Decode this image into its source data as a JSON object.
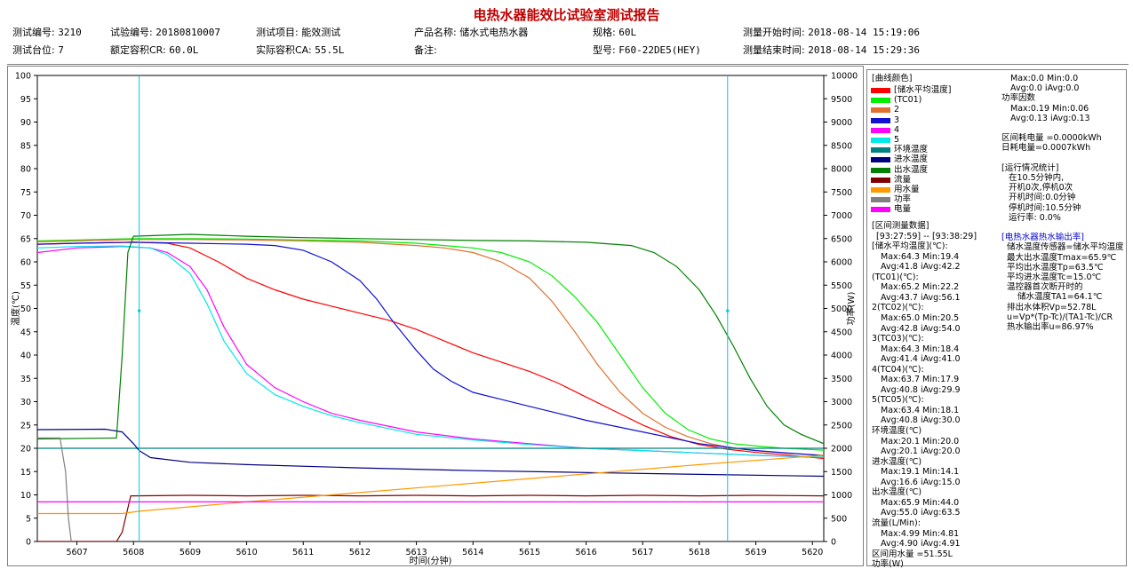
{
  "report": {
    "title": "电热水器能效比试验室测试报告",
    "row1": [
      {
        "label": "测试编号:",
        "value": "3210"
      },
      {
        "label": "试验编号:",
        "value": "20180810007"
      },
      {
        "label": "测试项目:",
        "value": "能效测试"
      },
      {
        "label": "产品名称:",
        "value": "储水式电热水器"
      },
      {
        "label": "规格:",
        "value": "60L"
      },
      {
        "label": "测量开始时间:",
        "value": "2018-08-14 15:19:06"
      }
    ],
    "row2": [
      {
        "label": "测试台位:",
        "value": "7"
      },
      {
        "label": "额定容积CR:",
        "value": "60.0L"
      },
      {
        "label": "实际容积CA:",
        "value": "55.5L"
      },
      {
        "label": "备注:",
        "value": ""
      },
      {
        "label": "型号:",
        "value": "F60-22DE5(HEY)"
      },
      {
        "label": "测量结束时间:",
        "value": "2018-08-14 15:29:36"
      }
    ]
  },
  "legend": {
    "header": "[曲线颜色]",
    "items": [
      {
        "label": "[储水平均温度]",
        "color": "#ff0000"
      },
      {
        "label": "(TC01)",
        "color": "#00ee00"
      },
      {
        "label": "2",
        "color": "#e07030"
      },
      {
        "label": "3",
        "color": "#1010d0"
      },
      {
        "label": "4",
        "color": "#ff00ff"
      },
      {
        "label": "5",
        "color": "#00e8e8"
      },
      {
        "label": "环境温度",
        "color": "#008080"
      },
      {
        "label": "进水温度",
        "color": "#000080"
      },
      {
        "label": "出水温度",
        "color": "#008000"
      },
      {
        "label": "流量",
        "color": "#800000"
      },
      {
        "label": "用水量",
        "color": "#ff9900"
      },
      {
        "label": "功率",
        "color": "#808080"
      },
      {
        "label": "电量",
        "color": "#ff00ff"
      }
    ],
    "interval_lines": [
      "[区间测量数据]",
      "[93:27:59] -- [93:38:29]",
      "[储水平均温度](℃):",
      "Max:64.3 Min:19.4",
      "Avg:41.8 iAvg:42.2",
      "(TC01)(℃):",
      "Max:65.2 Min:22.2",
      "Avg:43.7 iAvg:56.1",
      "2(TC02)(℃):",
      "Max:65.0 Min:20.5",
      "Avg:42.8 iAvg:54.0",
      "3(TC03)(℃):",
      "Max:64.3 Min:18.4",
      "Avg:41.4 iAvg:41.0",
      "4(TC04)(℃):",
      "Max:63.7 Min:17.9",
      "Avg:40.8 iAvg:29.9",
      "5(TC05)(℃):",
      "Max:63.4 Min:18.1",
      "Avg:40.8 iAvg:30.0",
      "环境温度(℃)",
      "Max:20.1 Min:20.0",
      "Avg:20.1 iAvg:20.0",
      "进水温度(℃)",
      "Max:19.1 Min:14.1",
      "Avg:16.6 iAvg:15.0",
      "出水温度(℃)",
      "Max:65.9 Min:44.0",
      "Avg:55.0 iAvg:63.5",
      "流量(L/Min):",
      "Max:4.99 Min:4.81",
      "Avg:4.90 iAvg:4.91",
      "区间用水量 =51.55L",
      "功率(W)"
    ]
  },
  "stats": {
    "lines": [
      "Max:0.0 Min:0.0",
      "Avg:0.0 iAvg:0.0",
      "功率因数",
      "Max:0.19 Min:0.06",
      "Avg:0.13 iAvg:0.13",
      "",
      "区间耗电量 =0.0000kWh",
      "日耗电量=0.0007kWh",
      "",
      "[运行情况统计]",
      "在10.5分钟内,",
      "开机0次,停机0次",
      "开机时间:0.0分钟",
      "停机时间:10.5分钟",
      "运行率: 0.0%",
      "",
      "[电热水器热水输出率]",
      "储水温度传感器=储水平均温度",
      "最大出水温度Tmax=65.9℃",
      "平均出水温度Tp=63.5℃",
      "平均进水温度Tc=15.0℃",
      "温控器首次断开时的",
      "储水温度TA1=64.1℃",
      "排出水体积Vp=52.78L",
      "u=Vp*(Tp-Tc)/(TA1-Tc)/CR",
      "热水输出率u=86.97%"
    ]
  },
  "chart_data": {
    "type": "line",
    "xlabel": "时间(分钟)",
    "ylabel": "温度(℃)",
    "y2label": "功率(W)",
    "xlim": [
      5606.3,
      5620.2
    ],
    "ylim": [
      0,
      100
    ],
    "y2lim": [
      0,
      10000
    ],
    "x_ticks": [
      5607,
      5608,
      5609,
      5610,
      5611,
      5612,
      5613,
      5614,
      5615,
      5616,
      5617,
      5618,
      5619,
      5620
    ],
    "y_ticks": [
      0,
      5,
      10,
      15,
      20,
      25,
      30,
      35,
      40,
      45,
      50,
      55,
      60,
      65,
      70,
      75,
      80,
      85,
      90,
      95,
      100
    ],
    "y2_ticks": [
      0,
      500,
      1000,
      1500,
      2000,
      2500,
      3000,
      3500,
      4000,
      4500,
      5000,
      5500,
      6000,
      6500,
      7000,
      7500,
      8000,
      8500,
      9000,
      9500,
      10000
    ],
    "cursors": [
      5608.1,
      5618.5
    ],
    "grid": false,
    "series": [
      {
        "name": "[储水平均温度]",
        "color": "#ff0000",
        "x": [
          5606.3,
          5607.0,
          5608.0,
          5608.6,
          5609.0,
          5609.5,
          5610.0,
          5610.5,
          5611.0,
          5611.5,
          5612.0,
          5612.5,
          5613.0,
          5613.5,
          5614.0,
          5614.5,
          5615.0,
          5615.5,
          5616.0,
          5616.5,
          5617.0,
          5617.5,
          5618.0,
          5618.5,
          5619.0,
          5619.5,
          5620.2
        ],
        "y": [
          63.8,
          64.0,
          64.2,
          64.0,
          63.0,
          60.0,
          56.5,
          54.0,
          52.0,
          50.5,
          49.0,
          47.5,
          45.5,
          43.0,
          40.5,
          38.5,
          36.5,
          34.0,
          31.0,
          28.0,
          25.0,
          22.5,
          20.8,
          19.8,
          19.1,
          18.6,
          17.8
        ]
      },
      {
        "name": "(TC01)",
        "color": "#00ee00",
        "x": [
          5606.3,
          5607.0,
          5608.0,
          5609.0,
          5610.0,
          5611.0,
          5612.0,
          5613.0,
          5614.0,
          5614.5,
          5615.0,
          5615.4,
          5615.8,
          5616.2,
          5616.6,
          5617.0,
          5617.4,
          5617.8,
          5618.2,
          5618.6,
          5619.0,
          5619.5,
          5620.2
        ],
        "y": [
          64.5,
          64.7,
          65.0,
          65.0,
          64.9,
          64.7,
          64.5,
          64.0,
          63.0,
          62.0,
          60.0,
          57.0,
          52.5,
          47.0,
          40.0,
          33.0,
          27.5,
          24.0,
          22.0,
          21.0,
          20.5,
          20.0,
          19.6
        ]
      },
      {
        "name": "2",
        "color": "#e07030",
        "x": [
          5606.3,
          5607.0,
          5608.0,
          5609.0,
          5610.0,
          5611.0,
          5612.0,
          5613.0,
          5613.5,
          5614.0,
          5614.5,
          5615.0,
          5615.4,
          5615.8,
          5616.2,
          5616.6,
          5617.0,
          5617.4,
          5617.8,
          5618.2,
          5618.6,
          5619.0,
          5619.5,
          5620.2
        ],
        "y": [
          64.3,
          64.5,
          64.8,
          64.8,
          64.7,
          64.5,
          64.2,
          63.5,
          63.0,
          62.0,
          60.0,
          56.5,
          51.5,
          45.0,
          38.0,
          32.0,
          27.5,
          24.5,
          22.5,
          21.0,
          20.0,
          19.5,
          19.0,
          18.5
        ]
      },
      {
        "name": "3",
        "color": "#1010d0",
        "x": [
          5606.3,
          5607.0,
          5608.0,
          5609.0,
          5610.0,
          5610.5,
          5611.0,
          5611.5,
          5612.0,
          5612.3,
          5612.6,
          5613.0,
          5613.3,
          5613.6,
          5614.0,
          5614.5,
          5615.0,
          5615.5,
          5616.0,
          5617.0,
          5618.0,
          5619.0,
          5620.2
        ],
        "y": [
          63.8,
          64.0,
          64.2,
          64.0,
          63.8,
          63.5,
          62.5,
          60.0,
          56.0,
          52.0,
          47.0,
          41.0,
          37.0,
          34.5,
          32.0,
          30.5,
          29.0,
          27.5,
          26.0,
          23.5,
          21.0,
          19.5,
          18.4
        ]
      },
      {
        "name": "4",
        "color": "#ff00ff",
        "x": [
          5606.3,
          5607.0,
          5607.8,
          5608.3,
          5608.6,
          5609.0,
          5609.3,
          5609.6,
          5610.0,
          5610.5,
          5611.0,
          5611.5,
          5612.0,
          5613.0,
          5614.0,
          5615.0,
          5616.0,
          5617.0,
          5618.0,
          5619.0,
          5620.2
        ],
        "y": [
          62.0,
          63.0,
          63.3,
          63.0,
          62.0,
          59.0,
          54.0,
          46.0,
          38.0,
          33.0,
          30.0,
          27.5,
          26.0,
          23.5,
          22.0,
          21.0,
          20.0,
          19.5,
          19.0,
          18.5,
          18.0
        ]
      },
      {
        "name": "5",
        "color": "#00e8e8",
        "x": [
          5606.3,
          5607.0,
          5607.8,
          5608.3,
          5608.6,
          5609.0,
          5609.3,
          5609.6,
          5610.0,
          5610.5,
          5611.0,
          5611.5,
          5612.0,
          5613.0,
          5614.0,
          5615.0,
          5616.0,
          5617.0,
          5618.0,
          5619.0,
          5620.2
        ],
        "y": [
          63.0,
          63.3,
          63.4,
          63.0,
          61.5,
          57.5,
          51.0,
          43.0,
          36.0,
          31.5,
          29.0,
          27.0,
          25.5,
          23.0,
          21.8,
          20.8,
          20.0,
          19.5,
          19.0,
          18.5,
          18.1
        ]
      },
      {
        "name": "环境温度",
        "color": "#008080",
        "x": [
          5606.3,
          5620.2
        ],
        "y": [
          20.0,
          20.0
        ]
      },
      {
        "name": "进水温度",
        "color": "#000080",
        "x": [
          5606.3,
          5607.5,
          5607.8,
          5608.0,
          5608.1,
          5608.3,
          5609.0,
          5610.0,
          5612.0,
          5614.0,
          5616.0,
          5618.0,
          5620.2
        ],
        "y": [
          24.0,
          24.1,
          23.5,
          21.0,
          19.5,
          18.0,
          17.0,
          16.5,
          15.8,
          15.2,
          14.8,
          14.4,
          14.0
        ]
      },
      {
        "name": "出水温度",
        "color": "#008000",
        "x": [
          5606.3,
          5607.7,
          5607.8,
          5607.9,
          5608.0,
          5609.0,
          5610.0,
          5611.0,
          5612.0,
          5613.0,
          5614.0,
          5615.0,
          5616.0,
          5616.8,
          5617.2,
          5617.6,
          5618.0,
          5618.3,
          5618.6,
          5618.9,
          5619.2,
          5619.5,
          5619.8,
          5620.2
        ],
        "y": [
          22.0,
          22.2,
          40.0,
          62.0,
          65.5,
          65.9,
          65.5,
          65.2,
          65.0,
          64.8,
          64.6,
          64.5,
          64.2,
          63.5,
          62.0,
          59.0,
          54.0,
          48.5,
          42.0,
          35.0,
          29.0,
          25.0,
          23.0,
          21.0
        ]
      },
      {
        "name": "流量",
        "color": "#800000",
        "x": [
          5606.3,
          5607.7,
          5607.8,
          5607.95,
          5608.0,
          5609.0,
          5610.0,
          5611.0,
          5612.0,
          5613.0,
          5614.0,
          5615.0,
          5616.0,
          5617.0,
          5618.0,
          5619.0,
          5620.2
        ],
        "y": [
          0.0,
          0.0,
          2.0,
          9.8,
          9.8,
          9.9,
          9.8,
          9.9,
          9.8,
          9.9,
          9.8,
          9.9,
          9.8,
          9.9,
          9.8,
          9.9,
          9.8
        ]
      },
      {
        "name": "用水量",
        "color": "#ff9900",
        "x": [
          5606.3,
          5607.8,
          5608.1,
          5610.0,
          5612.0,
          5614.0,
          5616.0,
          5618.0,
          5620.2
        ],
        "y": [
          6.0,
          6.0,
          6.5,
          8.5,
          10.5,
          12.5,
          14.5,
          16.5,
          18.5
        ]
      },
      {
        "name": "功率",
        "color": "#808080",
        "x": [
          5606.3,
          5606.7,
          5606.8,
          5606.85,
          5606.9
        ],
        "y": [
          22.2,
          22.2,
          15.0,
          5.0,
          0.0
        ]
      },
      {
        "name": "电量",
        "color": "#ff00ff",
        "x": [
          5606.3,
          5620.2
        ],
        "y": [
          8.5,
          8.5
        ]
      }
    ]
  }
}
